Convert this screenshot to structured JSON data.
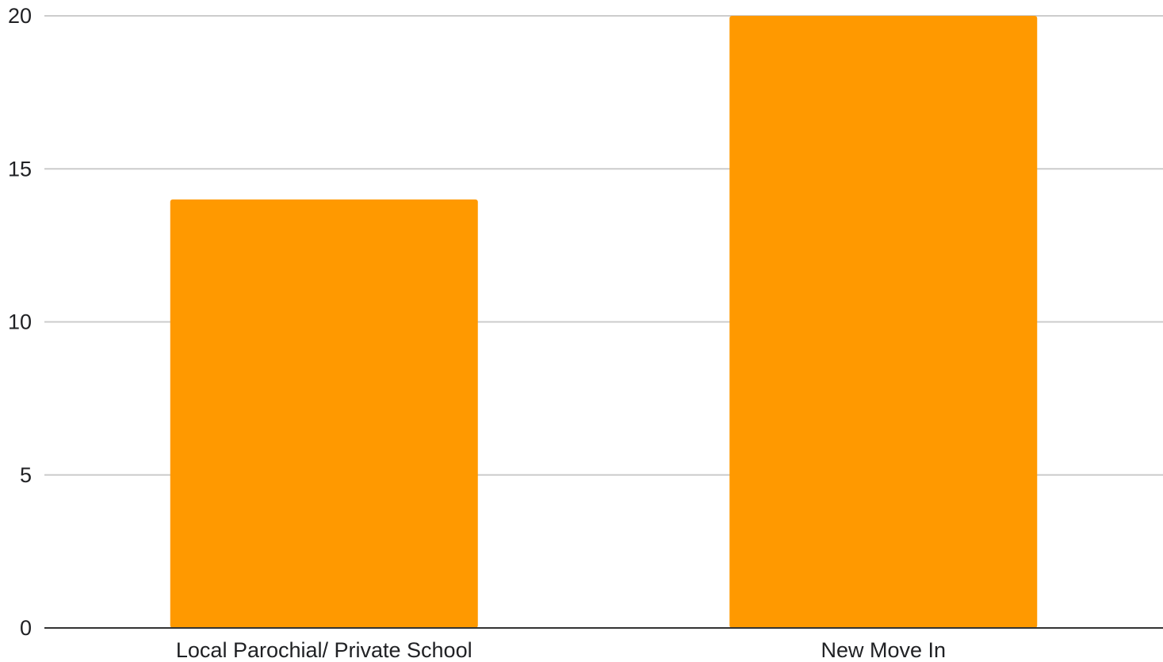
{
  "chart_data": {
    "type": "bar",
    "categories": [
      "Local Parochial/ Private School",
      "New Move In"
    ],
    "values": [
      14,
      20
    ],
    "ylim": [
      0,
      20
    ],
    "yticks": [
      "0",
      "5",
      "10",
      "15",
      "20"
    ],
    "grid": true,
    "bar_color": "#ff9900",
    "grid_color": "#cccccc",
    "axis_color": "#333333"
  }
}
